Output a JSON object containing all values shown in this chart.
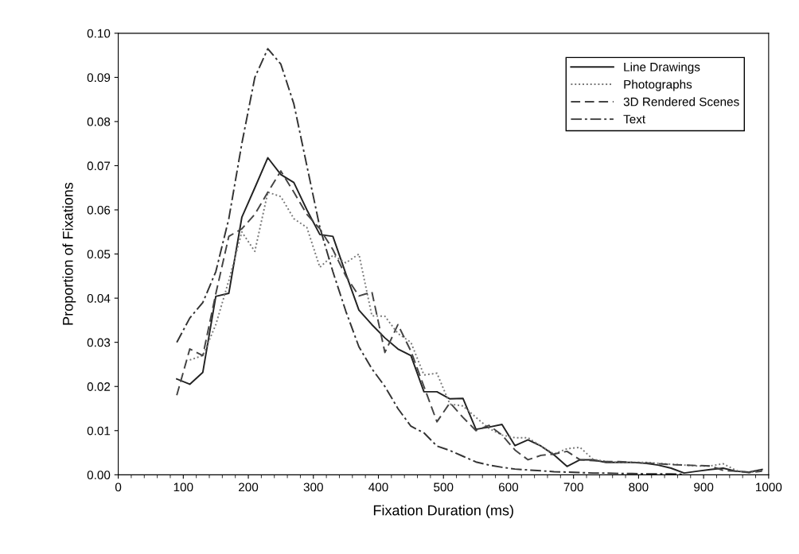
{
  "chart_data": {
    "type": "line",
    "xlabel": "Fixation Duration (ms)",
    "ylabel": "Proportion of Fixations",
    "xlim": [
      0,
      1000
    ],
    "xticks": [
      0,
      100,
      200,
      300,
      400,
      500,
      600,
      700,
      800,
      900,
      1000
    ],
    "ylim": [
      0,
      0.1
    ],
    "yticks": [
      {
        "value": 0,
        "label": "0.00"
      },
      {
        "value": 0.01,
        "label": "0.01"
      },
      {
        "value": 0.02,
        "label": "0.02"
      },
      {
        "value": 0.03,
        "label": "0.03"
      },
      {
        "value": 0.04,
        "label": "0.04"
      },
      {
        "value": 0.05,
        "label": "0.05"
      },
      {
        "value": 0.06,
        "label": "0.06"
      },
      {
        "value": 0.07,
        "label": "0.07"
      },
      {
        "value": 0.08,
        "label": "0.08"
      },
      {
        "value": 0.09,
        "label": "0.09"
      },
      {
        "value": 0.1,
        "label": "0.10"
      }
    ],
    "grid": false,
    "legend": "top right",
    "marker": "none",
    "series": [
      {
        "name": "Line Drawings",
        "color": "#222222",
        "line_style": "solid",
        "x": [
          90,
          110,
          130,
          150,
          170,
          190,
          210,
          230,
          250,
          270,
          290,
          310,
          330,
          350,
          370,
          390,
          410,
          430,
          450,
          470,
          490,
          510,
          530,
          550,
          570,
          590,
          610,
          630,
          650,
          670,
          690,
          710,
          730,
          750,
          770,
          790,
          810,
          830,
          850,
          870,
          890,
          910,
          930,
          950,
          970,
          990
        ],
        "values": [
          0.0217,
          0.0205,
          0.0232,
          0.0404,
          0.0411,
          0.0583,
          0.065,
          0.0718,
          0.068,
          0.0662,
          0.06,
          0.0544,
          0.054,
          0.0455,
          0.0373,
          0.034,
          0.031,
          0.0285,
          0.027,
          0.0188,
          0.0188,
          0.0172,
          0.0173,
          0.0103,
          0.0108,
          0.0114,
          0.0066,
          0.0079,
          0.0065,
          0.0045,
          0.0019,
          0.0034,
          0.0034,
          0.0028,
          0.0028,
          0.0028,
          0.0026,
          0.0022,
          0.0015,
          0.0004,
          0.0008,
          0.0012,
          0.0015,
          0.0008,
          0.0006,
          0.0012
        ]
      },
      {
        "name": "Photographs",
        "color": "#777777",
        "line_style": "dotted",
        "x": [
          110,
          130,
          150,
          170,
          190,
          210,
          230,
          250,
          270,
          290,
          310,
          330,
          350,
          370,
          390,
          410,
          430,
          450,
          470,
          490,
          510,
          530,
          550,
          570,
          590,
          610,
          630,
          650,
          670,
          690,
          710,
          730,
          750,
          770,
          790,
          810,
          830,
          850,
          870,
          890,
          910,
          930,
          950,
          970,
          990
        ],
        "values": [
          0.026,
          0.027,
          0.034,
          0.044,
          0.055,
          0.0506,
          0.064,
          0.063,
          0.058,
          0.056,
          0.047,
          0.0497,
          0.048,
          0.05,
          0.036,
          0.0359,
          0.032,
          0.03,
          0.0226,
          0.023,
          0.016,
          0.0156,
          0.013,
          0.0105,
          0.009,
          0.0084,
          0.0084,
          0.0065,
          0.0047,
          0.0059,
          0.0062,
          0.0035,
          0.003,
          0.0028,
          0.0028,
          0.0028,
          0.0026,
          0.0024,
          0.0022,
          0.002,
          0.002,
          0.0025,
          0.001,
          0.0005,
          0.001
        ]
      },
      {
        "name": "3D Rendered Scenes",
        "color": "#444444",
        "line_style": "dashed",
        "x": [
          90,
          110,
          130,
          150,
          170,
          190,
          210,
          230,
          250,
          270,
          290,
          310,
          330,
          350,
          370,
          390,
          410,
          430,
          450,
          470,
          490,
          510,
          530,
          550,
          570,
          590,
          610,
          630,
          650,
          670,
          690,
          710,
          730,
          750,
          770,
          790,
          810,
          830,
          850,
          870,
          890,
          910,
          930,
          950,
          970,
          990
        ],
        "values": [
          0.018,
          0.0285,
          0.027,
          0.041,
          0.054,
          0.0557,
          0.059,
          0.064,
          0.0688,
          0.064,
          0.059,
          0.0557,
          0.051,
          0.045,
          0.0405,
          0.0414,
          0.0277,
          0.034,
          0.028,
          0.02,
          0.012,
          0.0163,
          0.013,
          0.01,
          0.0112,
          0.009,
          0.0056,
          0.0034,
          0.0044,
          0.0047,
          0.0053,
          0.0034,
          0.0032,
          0.003,
          0.003,
          0.0028,
          0.0027,
          0.0025,
          0.0023,
          0.0022,
          0.0021,
          0.002,
          0.001,
          0.0008,
          0.0005,
          0.0008
        ]
      },
      {
        "name": "Text",
        "color": "#333333",
        "line_style": "dashdot",
        "x": [
          90,
          110,
          130,
          150,
          170,
          190,
          210,
          230,
          250,
          270,
          290,
          310,
          330,
          350,
          370,
          390,
          410,
          430,
          450,
          470,
          490,
          510,
          530,
          550,
          570,
          590,
          610,
          630,
          650,
          670,
          690,
          710,
          730,
          750,
          770,
          790,
          810,
          830,
          850,
          870
        ],
        "values": [
          0.03,
          0.0355,
          0.039,
          0.046,
          0.058,
          0.075,
          0.09,
          0.0965,
          0.093,
          0.084,
          0.07,
          0.056,
          0.046,
          0.037,
          0.029,
          0.024,
          0.02,
          0.015,
          0.011,
          0.0095,
          0.0065,
          0.0055,
          0.0042,
          0.0029,
          0.0022,
          0.0017,
          0.0013,
          0.0011,
          0.0009,
          0.0007,
          0.0006,
          0.0005,
          0.0004,
          0.0004,
          0.0003,
          0.0003,
          0.0002,
          0.0002,
          0.0002,
          0.0001
        ]
      }
    ]
  }
}
